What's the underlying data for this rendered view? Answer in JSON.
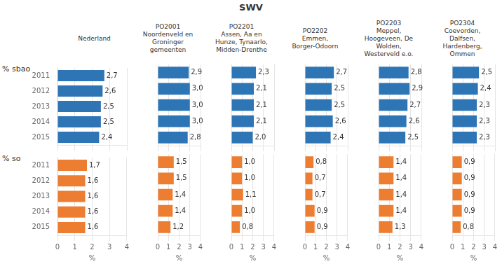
{
  "chart_data": [
    {
      "type": "bar",
      "orientation": "horizontal",
      "title": "SWV",
      "subtitle": "% sbao",
      "categories": [
        2011,
        2012,
        2013,
        2014,
        2015
      ],
      "series": [
        {
          "name": "Nederland",
          "color": "#2E75B6",
          "values": [
            2.7,
            2.6,
            2.5,
            2.5,
            2.4
          ],
          "value_labels": [
            "2,7",
            "2,6",
            "2,5",
            "2,5",
            "2,4"
          ]
        },
        {
          "name": "PO2001\nNoordenveld en\nGroninger\ngemeenten",
          "color": "#2E75B6",
          "values": [
            2.9,
            3.0,
            3.0,
            3.0,
            2.8
          ],
          "value_labels": [
            "2,9",
            "3,0",
            "3,0",
            "3,0",
            "2,8"
          ]
        },
        {
          "name": "PO2201\nAssen, Aa en\nHunze, Tynaarlo,\nMidden-Drenthe",
          "color": "#2E75B6",
          "values": [
            2.3,
            2.1,
            2.1,
            2.1,
            2.0
          ],
          "value_labels": [
            "2,3",
            "2,1",
            "2,1",
            "2,1",
            "2,0"
          ]
        },
        {
          "name": "PO2202\nEmmen,\nBorger-Odoorn",
          "color": "#2E75B6",
          "values": [
            2.7,
            2.5,
            2.5,
            2.6,
            2.4
          ],
          "value_labels": [
            "2,7",
            "2,5",
            "2,5",
            "2,6",
            "2,4"
          ]
        },
        {
          "name": "PO2203\nMeppel,\nHoogeveen, De\nWolden,\nWesterveld e.o.",
          "color": "#2E75B6",
          "values": [
            2.8,
            2.9,
            2.7,
            2.6,
            2.5
          ],
          "value_labels": [
            "2,8",
            "2,9",
            "2,7",
            "2,6",
            "2,5"
          ]
        },
        {
          "name": "PO2304\nCoevorden,\nDalfsen,\nHardenberg,\nOmmen",
          "color": "#2E75B6",
          "values": [
            2.5,
            2.4,
            2.3,
            2.3,
            2.3
          ],
          "value_labels": [
            "2,5",
            "2,4",
            "2,3",
            "2,3",
            "2,3"
          ]
        }
      ],
      "xlim": [
        0,
        4
      ],
      "xticks": [
        0,
        1,
        2,
        3,
        4
      ],
      "grid": true,
      "data_labels": true,
      "tick_labels": "y"
    },
    {
      "type": "bar",
      "orientation": "horizontal",
      "subtitle": "% so",
      "xlabel": "%",
      "categories": [
        2011,
        2012,
        2013,
        2014,
        2015
      ],
      "series": [
        {
          "name": "Nederland",
          "color": "#ED7D31",
          "values": [
            1.7,
            1.6,
            1.6,
            1.6,
            1.6
          ],
          "value_labels": [
            "1,7",
            "1,6",
            "1,6",
            "1,6",
            "1,6"
          ]
        },
        {
          "name": "PO2001\nNoordenveld en\nGroninger\ngemeenten",
          "color": "#ED7D31",
          "values": [
            1.5,
            1.5,
            1.4,
            1.4,
            1.2
          ],
          "value_labels": [
            "1,5",
            "1,5",
            "1,4",
            "1,4",
            "1,2"
          ]
        },
        {
          "name": "PO2201\nAssen, Aa en\nHunze, Tynaarlo,\nMidden-Drenthe",
          "color": "#ED7D31",
          "values": [
            1.0,
            1.0,
            1.1,
            1.0,
            0.8
          ],
          "value_labels": [
            "1,0",
            "1,0",
            "1,1",
            "1,0",
            "0,8"
          ]
        },
        {
          "name": "PO2202\nEmmen,\nBorger-Odoorn",
          "color": "#ED7D31",
          "values": [
            0.8,
            0.7,
            0.7,
            0.9,
            0.9
          ],
          "value_labels": [
            "0,8",
            "0,7",
            "0,7",
            "0,9",
            "0,9"
          ]
        },
        {
          "name": "PO2203\nMeppel,\nHoogeveen, De\nWolden,\nWesterveld e.o.",
          "color": "#ED7D31",
          "values": [
            1.4,
            1.4,
            1.4,
            1.4,
            1.3
          ],
          "value_labels": [
            "1,4",
            "1,4",
            "1,4",
            "1,4",
            "1,3"
          ]
        },
        {
          "name": "PO2304\nCoevorden,\nDalfsen,\nHardenberg,\nOmmen",
          "color": "#ED7D31",
          "values": [
            0.9,
            0.9,
            0.9,
            0.9,
            0.8
          ],
          "value_labels": [
            "0,9",
            "0,9",
            "0,9",
            "0,9",
            "0,8"
          ]
        }
      ],
      "xlim": [
        0,
        4
      ],
      "xticks": [
        0,
        1,
        2,
        3,
        4
      ],
      "grid": true,
      "data_labels": true
    }
  ]
}
